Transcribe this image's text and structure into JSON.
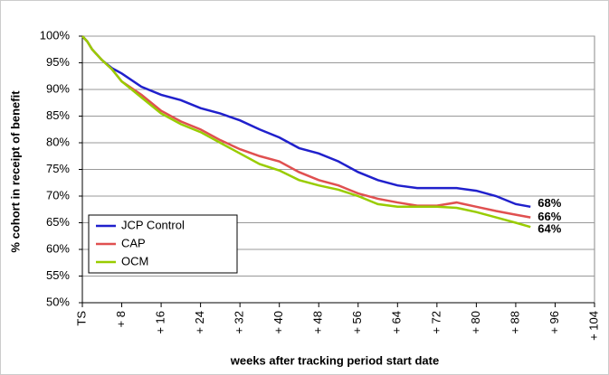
{
  "chart_data": {
    "type": "line",
    "xlabel": "weeks after tracking period start date",
    "ylabel": "% cohort in receipt of benefit",
    "x": [
      0,
      1,
      2,
      4,
      6,
      8,
      12,
      16,
      20,
      24,
      28,
      32,
      36,
      40,
      44,
      48,
      52,
      56,
      60,
      64,
      68,
      72,
      76,
      80,
      84,
      88,
      91
    ],
    "series": [
      {
        "name": "JCP Control",
        "color": "#2020cc",
        "values": [
          100,
          99,
          97.5,
          95.5,
          94,
          93,
          90.5,
          89,
          88,
          86.5,
          85.5,
          84.2,
          82.5,
          81,
          79,
          78,
          76.5,
          74.5,
          73,
          72,
          71.5,
          71.5,
          71.5,
          71,
          70,
          68.5,
          68
        ],
        "value_labels": [
          null,
          null,
          null,
          null,
          null,
          null,
          null,
          null,
          null,
          null,
          null,
          null,
          null,
          null,
          null,
          null,
          null,
          null,
          null,
          null,
          null,
          null,
          null,
          null,
          null,
          null,
          "68%"
        ]
      },
      {
        "name": "CAP",
        "color": "#e05050",
        "values": [
          100,
          99,
          97.5,
          95.5,
          93.8,
          91.5,
          89,
          86,
          84,
          82.5,
          80.5,
          78.8,
          77.5,
          76.5,
          74.5,
          73,
          72,
          70.5,
          69.5,
          68.8,
          68.2,
          68.2,
          68.8,
          68,
          67.2,
          66.5,
          66
        ],
        "value_labels": [
          null,
          null,
          null,
          null,
          null,
          null,
          null,
          null,
          null,
          null,
          null,
          null,
          null,
          null,
          null,
          null,
          null,
          null,
          null,
          null,
          null,
          null,
          null,
          null,
          null,
          null,
          "66%"
        ]
      },
      {
        "name": "OCM",
        "color": "#99cc00",
        "values": [
          100,
          99,
          97.5,
          95.5,
          93.8,
          91.5,
          88.5,
          85.5,
          83.5,
          82,
          80,
          78,
          76,
          74.8,
          73,
          72,
          71.2,
          70,
          68.5,
          68,
          68,
          68,
          67.8,
          67,
          66,
          65,
          64.2
        ],
        "value_labels": [
          null,
          null,
          null,
          null,
          null,
          null,
          null,
          null,
          null,
          null,
          null,
          null,
          null,
          null,
          null,
          null,
          null,
          null,
          null,
          null,
          null,
          null,
          null,
          null,
          null,
          null,
          "64%"
        ]
      }
    ],
    "xlim": [
      0,
      104
    ],
    "xticks": [
      {
        "value": 0,
        "label": "TS"
      },
      {
        "value": 8,
        "label": "+ 8"
      },
      {
        "value": 16,
        "label": "+ 16"
      },
      {
        "value": 24,
        "label": "+ 24"
      },
      {
        "value": 32,
        "label": "+ 32"
      },
      {
        "value": 40,
        "label": "+ 40"
      },
      {
        "value": 48,
        "label": "+ 48"
      },
      {
        "value": 56,
        "label": "+ 56"
      },
      {
        "value": 64,
        "label": "+ 64"
      },
      {
        "value": 72,
        "label": "+ 72"
      },
      {
        "value": 80,
        "label": "+ 80"
      },
      {
        "value": 88,
        "label": "+ 88"
      },
      {
        "value": 96,
        "label": "+ 96"
      },
      {
        "value": 104,
        "label": "+ 104"
      }
    ],
    "ylim": [
      50,
      100
    ],
    "yticks": [
      {
        "value": 50,
        "label": "50%"
      },
      {
        "value": 55,
        "label": "55%"
      },
      {
        "value": 60,
        "label": "60%"
      },
      {
        "value": 65,
        "label": "65%"
      },
      {
        "value": 70,
        "label": "70%"
      },
      {
        "value": 75,
        "label": "75%"
      },
      {
        "value": 80,
        "label": "80%"
      },
      {
        "value": 85,
        "label": "85%"
      },
      {
        "value": 90,
        "label": "90%"
      },
      {
        "value": 95,
        "label": "95%"
      },
      {
        "value": 100,
        "label": "100%"
      }
    ],
    "grid": true,
    "legend": "lower left"
  }
}
